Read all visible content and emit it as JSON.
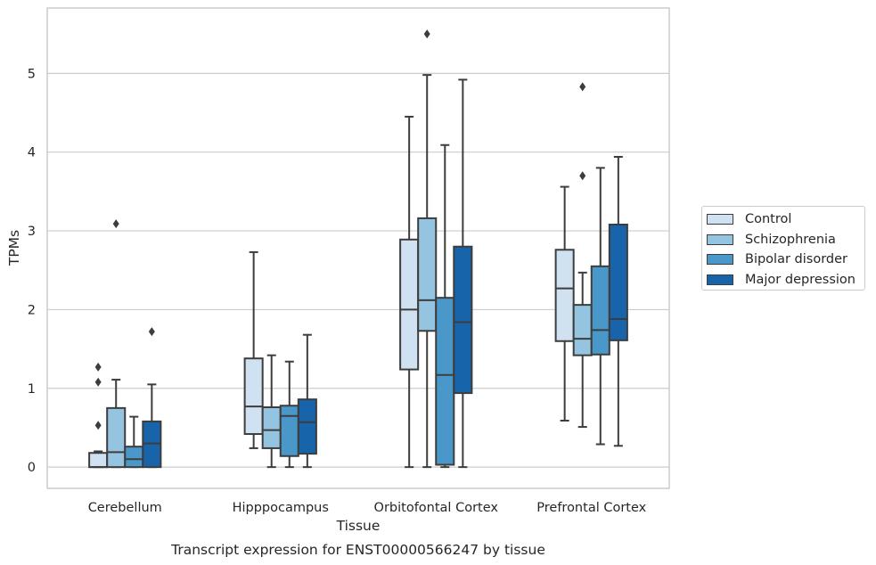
{
  "chart_data": {
    "type": "box",
    "title": "Transcript expression for ENST00000566247 by tissue",
    "xlabel": "Tissue",
    "ylabel": "TPMs",
    "ylim": [
      -0.27,
      5.83
    ],
    "yticks": [
      0,
      1,
      2,
      3,
      4,
      5
    ],
    "grid": true,
    "legend_placement": "right",
    "categories": [
      "Cerebellum",
      "Hipppocampus",
      "Orbitofontal Cortex",
      "Prefrontal Cortex"
    ],
    "series": [
      {
        "name": "Control",
        "color": "#d0e1f2",
        "boxes": [
          {
            "min": 0.0,
            "q1": 0.0,
            "median": 0.0,
            "q3": 0.18,
            "max": 0.2,
            "outliers": [
              0.53,
              1.08,
              1.27
            ]
          },
          {
            "min": 0.24,
            "q1": 0.42,
            "median": 0.77,
            "q3": 1.38,
            "max": 2.73,
            "outliers": []
          },
          {
            "min": 0.0,
            "q1": 1.24,
            "median": 2.0,
            "q3": 2.89,
            "max": 4.45,
            "outliers": []
          },
          {
            "min": 0.59,
            "q1": 1.6,
            "median": 2.27,
            "q3": 2.76,
            "max": 3.56,
            "outliers": []
          }
        ]
      },
      {
        "name": "Schizophrenia",
        "color": "#94c4df",
        "boxes": [
          {
            "min": 0.0,
            "q1": 0.0,
            "median": 0.19,
            "q3": 0.75,
            "max": 1.11,
            "outliers": [
              3.09
            ]
          },
          {
            "min": 0.0,
            "q1": 0.24,
            "median": 0.47,
            "q3": 0.76,
            "max": 1.42,
            "outliers": []
          },
          {
            "min": 0.0,
            "q1": 1.73,
            "median": 2.12,
            "q3": 3.16,
            "max": 4.98,
            "outliers": [
              5.5
            ]
          },
          {
            "min": 0.51,
            "q1": 1.42,
            "median": 1.63,
            "q3": 2.06,
            "max": 2.47,
            "outliers": [
              3.7,
              4.83
            ]
          }
        ]
      },
      {
        "name": "Bipolar disorder",
        "color": "#4a98c9",
        "boxes": [
          {
            "min": 0.0,
            "q1": 0.0,
            "median": 0.1,
            "q3": 0.26,
            "max": 0.64,
            "outliers": []
          },
          {
            "min": 0.0,
            "q1": 0.14,
            "median": 0.65,
            "q3": 0.78,
            "max": 1.34,
            "outliers": []
          },
          {
            "min": 0.0,
            "q1": 0.03,
            "median": 1.17,
            "q3": 2.15,
            "max": 4.09,
            "outliers": []
          },
          {
            "min": 0.29,
            "q1": 1.43,
            "median": 1.74,
            "q3": 2.55,
            "max": 3.8,
            "outliers": []
          }
        ]
      },
      {
        "name": "Major depression",
        "color": "#1764ab",
        "boxes": [
          {
            "min": 0.0,
            "q1": 0.0,
            "median": 0.3,
            "q3": 0.58,
            "max": 1.05,
            "outliers": [
              1.72
            ]
          },
          {
            "min": 0.0,
            "q1": 0.17,
            "median": 0.57,
            "q3": 0.86,
            "max": 1.68,
            "outliers": []
          },
          {
            "min": 0.0,
            "q1": 0.94,
            "median": 1.84,
            "q3": 2.8,
            "max": 4.92,
            "outliers": []
          },
          {
            "min": 0.27,
            "q1": 1.61,
            "median": 1.88,
            "q3": 3.08,
            "max": 3.94,
            "outliers": []
          }
        ]
      }
    ]
  }
}
